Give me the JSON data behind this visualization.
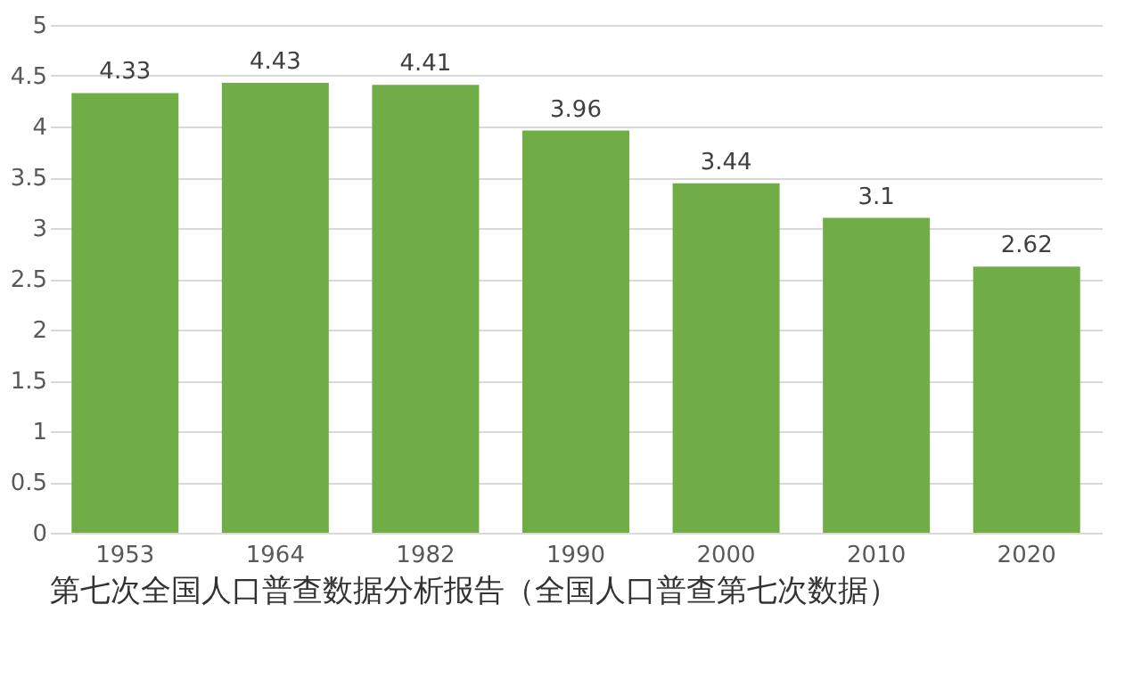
{
  "chart_data": {
    "type": "bar",
    "categories": [
      "1953",
      "1964",
      "1982",
      "1990",
      "2000",
      "2010",
      "2020"
    ],
    "values": [
      4.33,
      4.43,
      4.41,
      3.96,
      3.44,
      3.1,
      2.62
    ],
    "color": "#70ad47",
    "ylim": [
      0,
      5
    ],
    "yticks": [
      0,
      0.5,
      1,
      1.5,
      2,
      2.5,
      3,
      3.5,
      4,
      4.5,
      5
    ],
    "grid": "y",
    "data_labels": true,
    "annotations": [
      "第七次全国人口普查数据分析报告（全国人口普查第七次数据）"
    ]
  }
}
